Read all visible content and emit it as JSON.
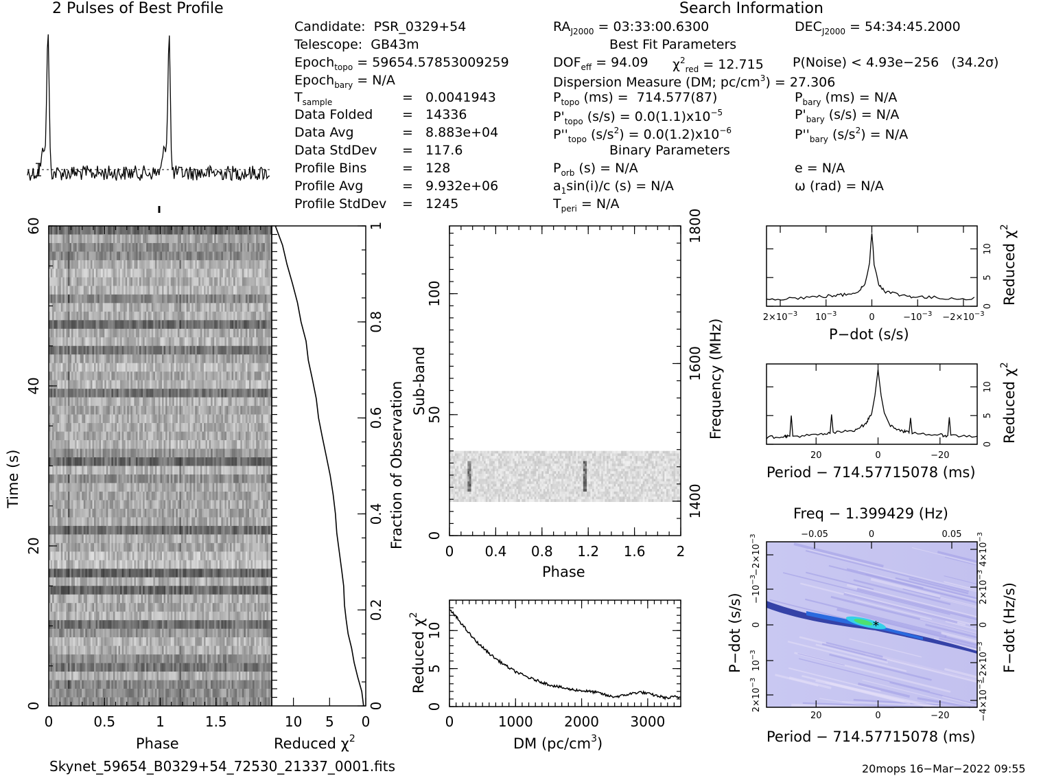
{
  "profile": {
    "title": "2 Pulses of Best Profile"
  },
  "search": {
    "title": "Search Information",
    "candidate": "Candidate:  PSR_0329+54",
    "telescope": "Telescope:  GB43m",
    "epoch_topo_label": "Epoch",
    "epoch_topo_sub": "topo",
    "epoch_topo_value": " = 59654.57853009259",
    "epoch_bary_label": "Epoch",
    "epoch_bary_sub": "bary",
    "epoch_bary_value": " = N/A",
    "t_sample_label": "T",
    "t_sample_sub": "sample",
    "t_sample_value": "=   0.0041943",
    "data_folded_label": "Data Folded",
    "data_folded_value": "=   14336",
    "data_avg_label": "Data Avg",
    "data_avg_value": "=   8.883e+04",
    "data_stddev_label": "Data StdDev",
    "data_stddev_value": "=   117.6",
    "profile_bins_label": "Profile Bins",
    "profile_bins_value": "=   128",
    "profile_avg_label": "Profile Avg",
    "profile_avg_value": "=   9.932e+06",
    "profile_stddev_label": "Profile StdDev",
    "profile_stddev_value": "=   1245",
    "ra_label": "RA",
    "ra_sub": "J2000",
    "ra_value": " = 03:33:00.6300",
    "dec_label": "DEC",
    "dec_sub": "J2000",
    "dec_value": " = 54:34:45.2000",
    "best_fit_title": "Best Fit Parameters",
    "dof_label": "DOF",
    "dof_sub": "eff",
    "dof_value": " = 94.09",
    "chi_label": "χ",
    "chi_sup": "2",
    "chi_sub": "red",
    "chi_value": " = 12.715",
    "pnoise": "P(Noise) < 4.93e−256   (34.2σ)",
    "dm_label": "Dispersion Measure (DM; pc/cm",
    "dm_sup": "3",
    "dm_value": ") = 27.306",
    "ptopo_label": "P",
    "ptopo_sub": "topo",
    "ptopo_value": " (ms) =  714.577(87)",
    "pbary_label": "P",
    "pbary_sub": "bary",
    "pbary_value": " (ms) = N/A",
    "pdtopo_label": "P'",
    "pdtopo_sub": "topo",
    "pdtopo_value": " (s/s) = 0.0(1.1)x10",
    "pdtopo_exp": "−5",
    "pdbary_label": "P'",
    "pdbary_sub": "bary",
    "pdbary_value": " (s/s) = N/A",
    "pddtopo_label": "P''",
    "pddtopo_sub": "topo",
    "pddtopo_value_a": " (s/s",
    "pddtopo_value_sup": "2",
    "pddtopo_value_b": ") = 0.0(1.2)x10",
    "pddtopo_exp": "−6",
    "pddbary_label": "P''",
    "pddbary_sub": "bary",
    "pddbary_value_a": " (s/s",
    "pddbary_value_sup": "2",
    "pddbary_value_b": ") = N/A",
    "binary_title": "Binary Parameters",
    "porb_label": "P",
    "porb_sub": "orb",
    "porb_value": " (s) = N/A",
    "e_value": "e = N/A",
    "a1_label": "a",
    "a1_sub": "1",
    "a1_value": "sin(i)/c (s) = N/A",
    "omega_value": "ω (rad) = N/A",
    "tperi_label": "T",
    "tperi_sub": "peri",
    "tperi_value": " = N/A"
  },
  "footer": {
    "filename": "Skynet_59654_B0329+54_72530_21337_0001.fits",
    "stamp": "20mops 16−Mar−2022 09:55"
  },
  "chart_data": [
    {
      "id": "time-phase",
      "type": "heatmap",
      "xlabel": "Phase",
      "ylabel": "Time (s)",
      "xlim": [
        0,
        2
      ],
      "ylim": [
        0,
        60
      ],
      "xticks": [
        "0",
        "0.5",
        "1",
        "1.5"
      ],
      "yticks": [
        "0",
        "20",
        "40",
        "60"
      ],
      "colormap": "grayscale"
    },
    {
      "id": "time-chi",
      "type": "line",
      "xlabel": "Reduced χ",
      "xlabel_sup": "2",
      "ylabel_right": "Fraction of Observation",
      "xlim": [
        13,
        0
      ],
      "ylim": [
        0,
        1
      ],
      "xticks": [
        "10",
        "5",
        "0"
      ],
      "yticks": [
        "0",
        "0.2",
        "0.4",
        "0.6",
        "0.8",
        "1"
      ],
      "points": [
        [
          0.3,
          0
        ],
        [
          0.6,
          0.03
        ],
        [
          1.0,
          0.06
        ],
        [
          1.5,
          0.09
        ],
        [
          2.0,
          0.12
        ],
        [
          2.3,
          0.15
        ],
        [
          2.6,
          0.18
        ],
        [
          2.8,
          0.21
        ],
        [
          3.1,
          0.25
        ],
        [
          3.3,
          0.28
        ],
        [
          3.6,
          0.32
        ],
        [
          3.9,
          0.36
        ],
        [
          4.2,
          0.4
        ],
        [
          4.6,
          0.44
        ],
        [
          5.0,
          0.48
        ],
        [
          5.4,
          0.52
        ],
        [
          5.9,
          0.56
        ],
        [
          6.4,
          0.6
        ],
        [
          6.9,
          0.64
        ],
        [
          7.4,
          0.68
        ],
        [
          7.9,
          0.72
        ],
        [
          8.4,
          0.76
        ],
        [
          8.9,
          0.8
        ],
        [
          9.5,
          0.84
        ],
        [
          10.1,
          0.88
        ],
        [
          10.8,
          0.92
        ],
        [
          11.6,
          0.96
        ],
        [
          12.5,
          1.0
        ]
      ]
    },
    {
      "id": "subband-phase",
      "type": "heatmap",
      "xlabel": "Phase",
      "ylabel": "Sub-band",
      "ylabel_right": "Frequency (MHz)",
      "xlim": [
        0,
        2
      ],
      "ylim": [
        0,
        128
      ],
      "xticks": [
        "0",
        "0.4",
        "0.8",
        "1.2",
        "1.6",
        "2"
      ],
      "yticks": [
        "0",
        "50",
        "100"
      ],
      "yticks_right": [
        "1400",
        "1600",
        "1800"
      ],
      "band_subbands": [
        14,
        34
      ],
      "pulse_phases": [
        0.16,
        1.16
      ],
      "colormap": "grayscale"
    },
    {
      "id": "dm-chi",
      "type": "line",
      "xlabel": "DM (pc/cm",
      "xlabel_sup": "3",
      "xlabel_end": ")",
      "ylabel": "Reduced χ",
      "ylabel_sup": "2",
      "xlim": [
        0,
        3500
      ],
      "ylim": [
        0,
        14
      ],
      "xticks": [
        "0",
        "1000",
        "2000",
        "3000"
      ],
      "yticks": [
        "0",
        "5",
        "10"
      ],
      "points": [
        [
          0,
          12.7
        ],
        [
          60,
          12.2
        ],
        [
          120,
          11.6
        ],
        [
          200,
          10.7
        ],
        [
          300,
          9.6
        ],
        [
          400,
          8.6
        ],
        [
          500,
          7.8
        ],
        [
          600,
          7.0
        ],
        [
          700,
          6.3
        ],
        [
          800,
          5.7
        ],
        [
          900,
          5.1
        ],
        [
          1000,
          4.6
        ],
        [
          1100,
          4.2
        ],
        [
          1200,
          3.8
        ],
        [
          1300,
          3.5
        ],
        [
          1400,
          3.2
        ],
        [
          1500,
          2.9
        ],
        [
          1600,
          2.7
        ],
        [
          1700,
          2.5
        ],
        [
          1800,
          2.3
        ],
        [
          1900,
          2.2
        ],
        [
          2000,
          2.1
        ],
        [
          2100,
          2.0
        ],
        [
          2200,
          1.9
        ],
        [
          2300,
          1.7
        ],
        [
          2400,
          1.4
        ],
        [
          2500,
          1.3
        ],
        [
          2600,
          1.4
        ],
        [
          2700,
          1.6
        ],
        [
          2800,
          1.8
        ],
        [
          2900,
          1.9
        ],
        [
          3000,
          1.7
        ],
        [
          3100,
          1.5
        ],
        [
          3200,
          1.3
        ],
        [
          3300,
          1.1
        ],
        [
          3400,
          1.3
        ],
        [
          3500,
          1.2
        ]
      ]
    },
    {
      "id": "pdot-chi",
      "type": "line",
      "xlabel": "P−dot (s/s)",
      "ylabel_right": "Reduced χ",
      "ylabel_right_sup": "2",
      "xlim": [
        0.0023,
        -0.0023
      ],
      "ylim": [
        0,
        14
      ],
      "xticks": [
        "2×10",
        "10",
        "0",
        "−10",
        "−2×10"
      ],
      "xtick_exp": "−3",
      "yticks": [
        "0",
        "5",
        "10"
      ],
      "points": [
        [
          0.0023,
          1.3
        ],
        [
          0.0018,
          1.4
        ],
        [
          0.0013,
          1.6
        ],
        [
          0.0009,
          1.8
        ],
        [
          0.0006,
          2.0
        ],
        [
          0.0003,
          2.6
        ],
        [
          0.00015,
          3.8
        ],
        [
          5e-05,
          7.5
        ],
        [
          0.0,
          13.0
        ],
        [
          -5e-05,
          7.5
        ],
        [
          -0.00015,
          3.8
        ],
        [
          -0.0003,
          2.6
        ],
        [
          -0.0006,
          2.0
        ],
        [
          -0.0009,
          1.7
        ],
        [
          -0.0013,
          1.5
        ],
        [
          -0.0018,
          1.4
        ],
        [
          -0.0023,
          1.3
        ]
      ]
    },
    {
      "id": "period-chi",
      "type": "line",
      "xlabel": "Period − 714.57715078 (ms)",
      "ylabel_right": "Reduced χ",
      "ylabel_right_sup": "2",
      "xlim": [
        36,
        -32
      ],
      "ylim": [
        0,
        14
      ],
      "xticks": [
        "20",
        "0",
        "−20"
      ],
      "yticks": [
        "0",
        "5",
        "10"
      ],
      "points": [
        [
          36,
          1.2
        ],
        [
          30,
          1.4
        ],
        [
          28.5,
          1.4
        ],
        [
          28,
          5.0
        ],
        [
          27.5,
          1.4
        ],
        [
          20,
          1.6
        ],
        [
          15.5,
          1.9
        ],
        [
          15,
          5.2
        ],
        [
          14.5,
          2.0
        ],
        [
          8,
          2.4
        ],
        [
          4,
          3.5
        ],
        [
          2,
          5.5
        ],
        [
          1,
          8.5
        ],
        [
          0,
          13.0
        ],
        [
          -1,
          8.5
        ],
        [
          -2,
          5.5
        ],
        [
          -4,
          3.2
        ],
        [
          -8,
          2.3
        ],
        [
          -10,
          2.0
        ],
        [
          -10.5,
          4.6
        ],
        [
          -11,
          2.0
        ],
        [
          -20,
          1.6
        ],
        [
          -22.5,
          1.5
        ],
        [
          -23,
          4.7
        ],
        [
          -23.5,
          1.5
        ],
        [
          -32,
          1.4
        ]
      ]
    },
    {
      "id": "period-pdot",
      "type": "heatmap",
      "title": "Freq − 1.399429 (Hz)",
      "xlabel": "Period − 714.57715078 (ms)",
      "ylabel": "P−dot (s/s)",
      "ylabel_right": "F−dot (Hz/s)",
      "xlim": [
        36,
        -32
      ],
      "ylim": [
        0.0023,
        -0.0023
      ],
      "xticks": [
        "20",
        "0",
        "−20"
      ],
      "xticks_top": [
        "−0.05",
        "0",
        "0.05"
      ],
      "yticks": [
        "−2×10",
        "−10",
        "0",
        "10",
        "2×10"
      ],
      "yticks_right": [
        "4×10",
        "2×10",
        "0",
        "−2×10",
        "−4×10"
      ],
      "ytick_exp": "−3",
      "colormap": "blue-green"
    }
  ]
}
